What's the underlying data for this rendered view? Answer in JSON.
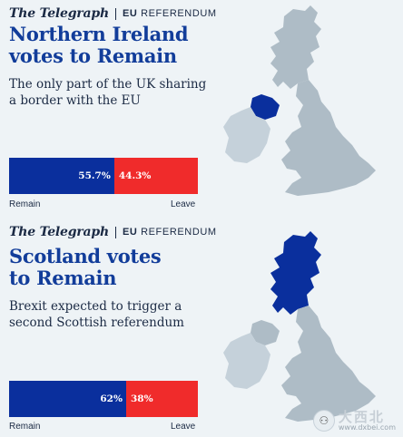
{
  "panels": [
    {
      "brand": "The Telegraph",
      "ref_bold": "EU",
      "ref_text": "REFERENDUM",
      "headline_lines": [
        "Northern Ireland",
        "votes to Remain"
      ],
      "sub_lines": [
        "The only part of the UK sharing",
        "a border with the EU"
      ],
      "remain_value": 55.7,
      "leave_value": 44.3,
      "remain_text": "55.7%",
      "leave_text": "44.3%",
      "remain_label": "Remain",
      "leave_label": "Leave",
      "highlight": "northern-ireland"
    },
    {
      "brand": "The Telegraph",
      "ref_bold": "EU",
      "ref_text": "REFERENDUM",
      "headline_lines": [
        "Scotland votes",
        "to Remain"
      ],
      "sub_lines": [
        "Brexit expected to trigger a",
        "second Scottish referendum"
      ],
      "remain_value": 62,
      "leave_value": 38,
      "remain_text": "62%",
      "leave_text": "38%",
      "remain_label": "Remain",
      "leave_label": "Leave",
      "highlight": "scotland"
    }
  ],
  "watermark": {
    "cn": "大西北",
    "url": "www.dxbei.com",
    "icon": "scholar-logo-icon"
  },
  "colors": {
    "remain": "#0a2f9d",
    "leave": "#f02b2b",
    "headline": "#123d9a",
    "map_land": "#aebcc6",
    "map_highlight": "#0a2f9d",
    "background": "#eef3f6"
  }
}
